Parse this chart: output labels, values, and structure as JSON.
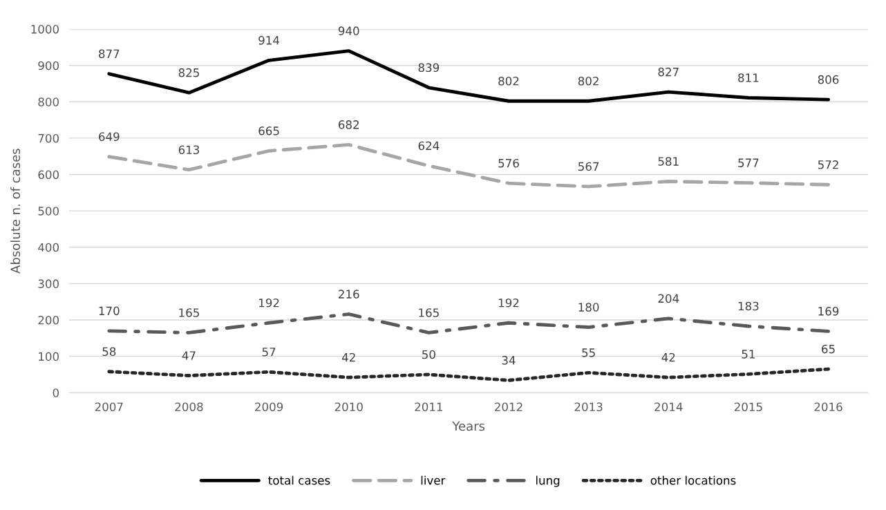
{
  "chart_data": {
    "type": "line",
    "xlabel": "Years",
    "ylabel": "Absolute n. of cases",
    "categories": [
      "2007",
      "2008",
      "2009",
      "2010",
      "2011",
      "2012",
      "2013",
      "2014",
      "2015",
      "2016"
    ],
    "series": [
      {
        "name": "total cases",
        "color": "#000000",
        "line_style": "solid",
        "values": [
          877,
          825,
          914,
          940,
          839,
          802,
          802,
          827,
          811,
          806
        ]
      },
      {
        "name": "liver",
        "color": "#a6a6a6",
        "line_style": "dashed",
        "values": [
          649,
          613,
          665,
          682,
          624,
          576,
          567,
          581,
          577,
          572
        ]
      },
      {
        "name": "lung",
        "color": "#595959",
        "line_style": "dashdot",
        "values": [
          170,
          165,
          192,
          216,
          165,
          192,
          180,
          204,
          183,
          169
        ]
      },
      {
        "name": "other locations",
        "color": "#262626",
        "line_style": "dotted",
        "values": [
          58,
          47,
          57,
          42,
          50,
          34,
          55,
          42,
          51,
          65
        ]
      }
    ],
    "ylim": [
      0,
      1000
    ],
    "yticks": [
      0,
      100,
      200,
      300,
      400,
      500,
      600,
      700,
      800,
      900,
      1000
    ],
    "grid": "y",
    "legend": "bottom",
    "data_labels": true,
    "marker": "none"
  }
}
